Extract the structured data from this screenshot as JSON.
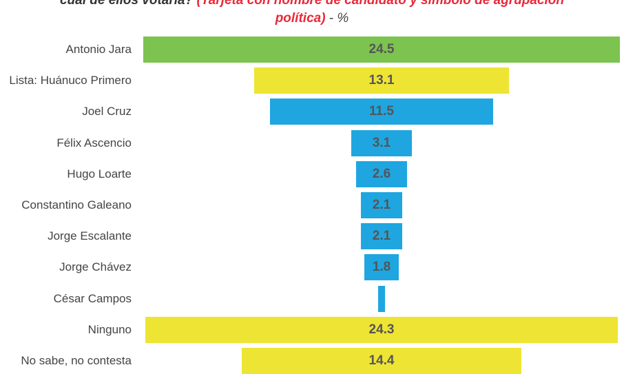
{
  "title": {
    "line1_prefix": "cuál de ellos votaría? ",
    "line1_red": "(Tarjeta con nombre de candidato y símbolo de agrupación",
    "line2_red": "política)",
    "line2_suffix": " - %"
  },
  "colors": {
    "green": "#7cc34f",
    "yellow": "#eee433",
    "blue": "#1fa6e0"
  },
  "chart_data": {
    "type": "bar",
    "orientation": "horizontal-centered",
    "categories": [
      "Antonio Jara",
      "Lista: Huánuco Primero",
      "Joel Cruz",
      "Félix Ascencio",
      "Hugo Loarte",
      "Constantino Galeano",
      "Jorge Escalante",
      "Jorge Chávez",
      "César Campos",
      "Ninguno",
      "No sabe, no contesta"
    ],
    "values": [
      24.5,
      13.1,
      11.5,
      3.1,
      2.6,
      2.1,
      2.1,
      1.8,
      0.3,
      24.3,
      14.4
    ],
    "value_labels": [
      "24.5",
      "13.1",
      "11.5",
      "3.1",
      "2.6",
      "2.1",
      "2.1",
      "1.8",
      "",
      "24.3",
      "14.4"
    ],
    "bar_colors": [
      "green",
      "yellow",
      "blue",
      "blue",
      "blue",
      "blue",
      "blue",
      "blue",
      "blue",
      "yellow",
      "yellow"
    ],
    "xlim": [
      0,
      24.5
    ]
  }
}
